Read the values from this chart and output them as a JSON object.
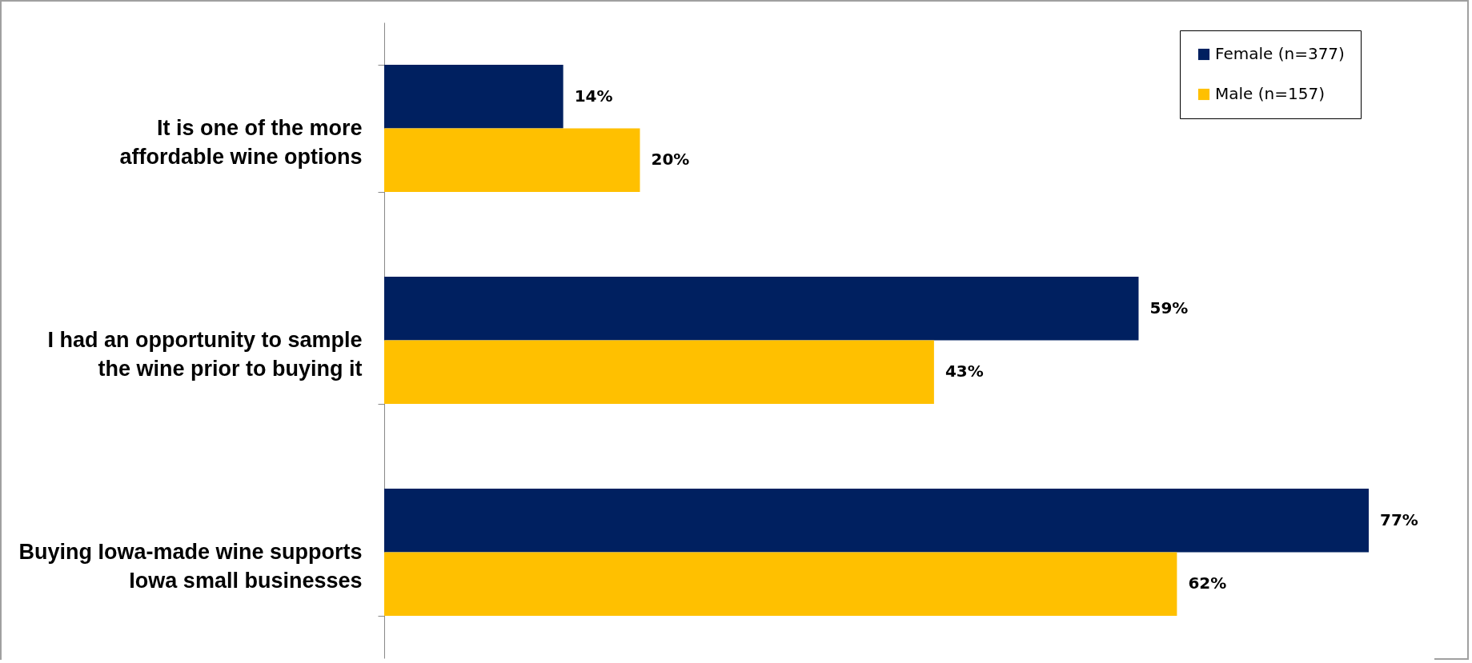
{
  "chart_data": {
    "type": "bar",
    "orientation": "horizontal",
    "categories": [
      "It is one of the more affordable wine options",
      "I had an opportunity to sample the wine prior to buying it",
      "Buying Iowa-made wine supports Iowa small businesses"
    ],
    "series": [
      {
        "name": "Female (n=377)",
        "color": "#002060",
        "values": [
          14,
          59,
          77
        ],
        "value_labels": [
          "14%",
          "59%",
          "77%"
        ]
      },
      {
        "name": "Male (n=157)",
        "color": "#ffc000",
        "values": [
          20,
          43,
          62
        ],
        "value_labels": [
          "20%",
          "43%",
          "62%"
        ]
      }
    ],
    "legend": "top right"
  }
}
